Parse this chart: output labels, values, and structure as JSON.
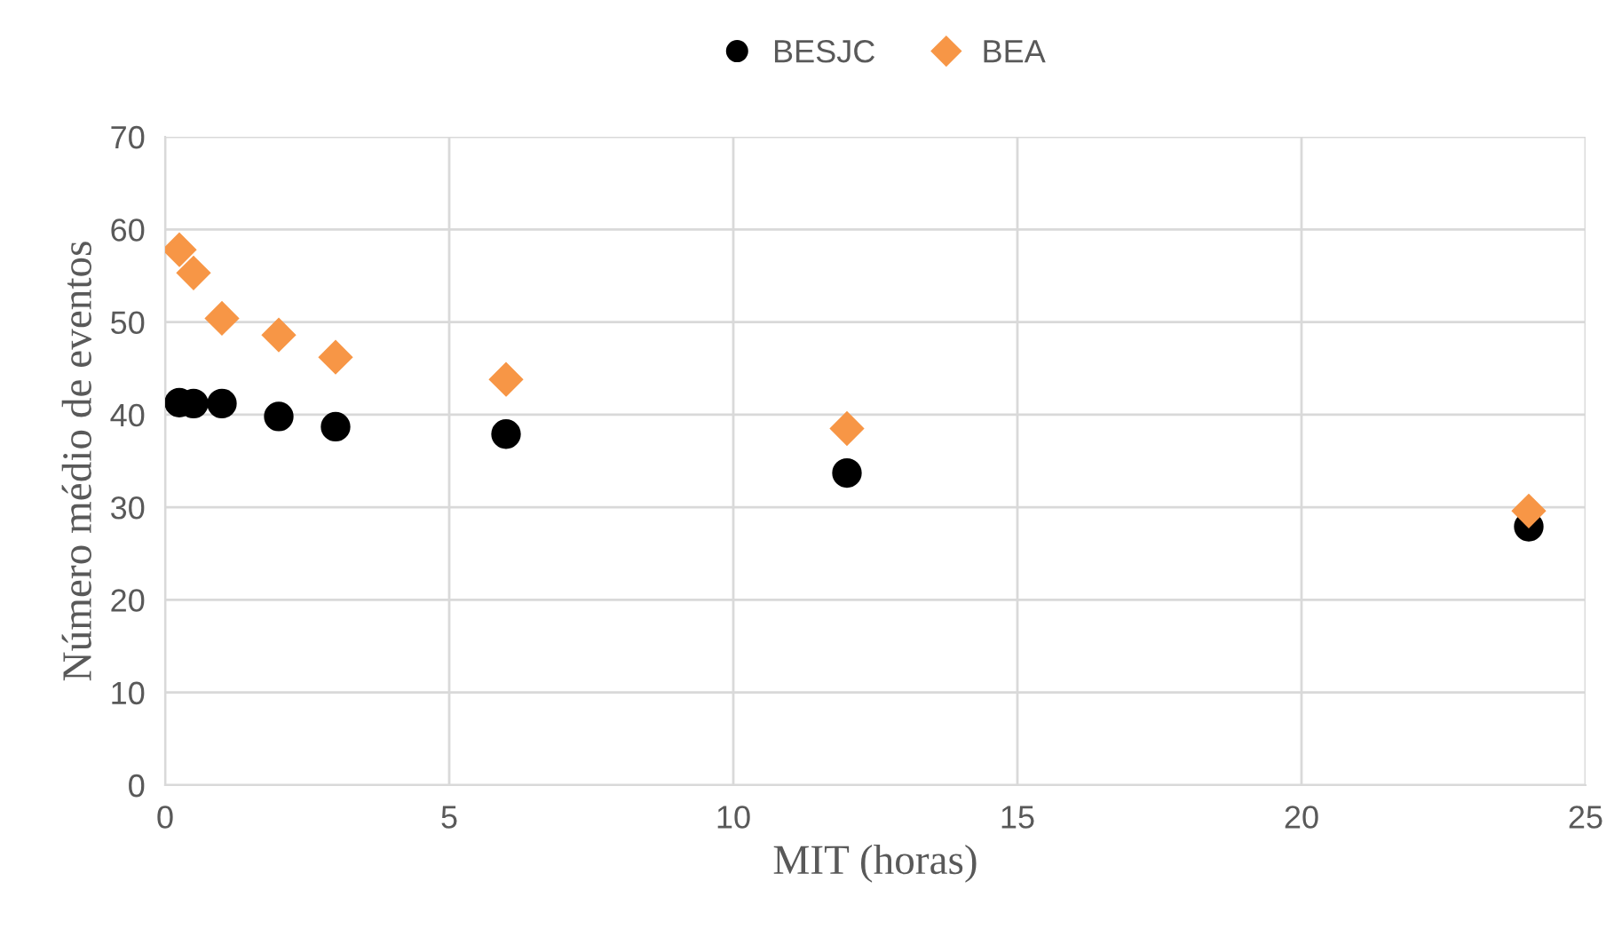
{
  "chart_data": {
    "type": "scatter",
    "xlabel": "MIT (horas)",
    "ylabel": "Número médio de eventos",
    "series": [
      {
        "name": "BESJC",
        "color": "#000000",
        "marker": "circle",
        "x": [
          0.25,
          0.5,
          1,
          2,
          3,
          6,
          12,
          24
        ],
        "values": [
          41.3,
          41.2,
          41.2,
          39.8,
          38.7,
          37.9,
          33.7,
          27.9
        ]
      },
      {
        "name": "BEA",
        "color": "#f79646",
        "marker": "diamond",
        "x": [
          0.25,
          0.5,
          1,
          2,
          3,
          6,
          12,
          24
        ],
        "values": [
          57.8,
          55.3,
          50.4,
          48.6,
          46.2,
          43.8,
          38.5,
          29.6
        ]
      }
    ],
    "xlim": [
      0,
      25
    ],
    "xticks": [
      0,
      5,
      10,
      15,
      20,
      25
    ],
    "ylim": [
      0,
      70
    ],
    "yticks": [
      0,
      10,
      20,
      30,
      40,
      50,
      60,
      70
    ],
    "grid": true,
    "legend": "top"
  }
}
